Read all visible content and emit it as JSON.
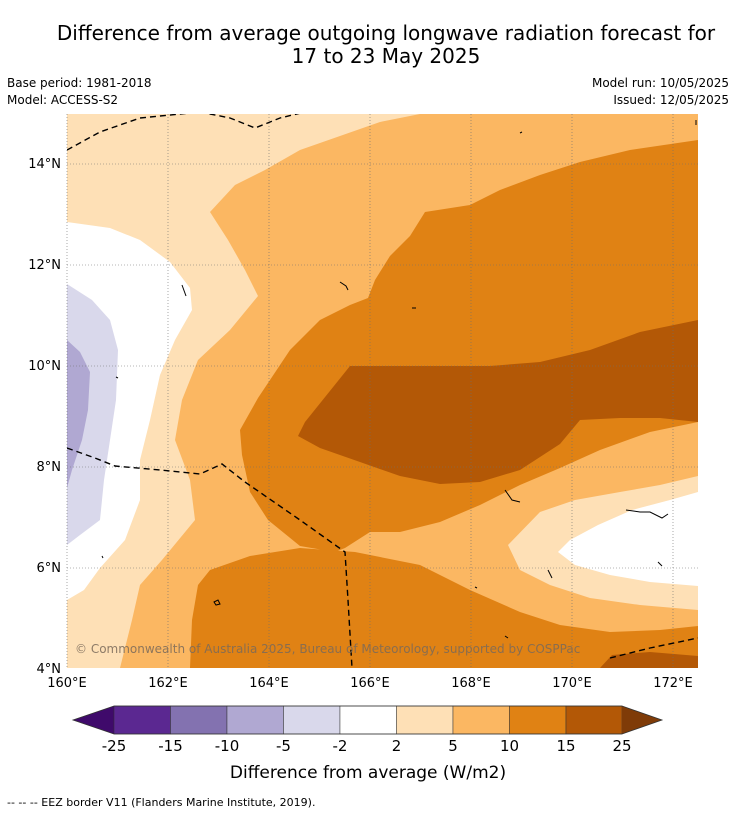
{
  "title_line1": "Difference from average outgoing longwave radiation forecast for",
  "title_line2": "17 to 23 May 2025",
  "meta_left": {
    "base_period": "Base period: 1981-2018",
    "model": "Model: ACCESS-S2"
  },
  "meta_right": {
    "model_run": "Model run: 10/05/2025",
    "issued": "Issued: 12/05/2025"
  },
  "map": {
    "lon_labels": [
      "160°E",
      "162°E",
      "164°E",
      "166°E",
      "168°E",
      "170°E",
      "172°E"
    ],
    "lat_labels": [
      "4°N",
      "6°N",
      "8°N",
      "10°N",
      "12°N",
      "14°N"
    ],
    "attribution": "© Commonwealth of Australia 2025, Bureau of Meteorology, supported by COSPPac"
  },
  "colorbar": {
    "ticks": [
      "-25",
      "-15",
      "-10",
      "-5",
      "-2",
      "2",
      "5",
      "10",
      "15",
      "25"
    ],
    "colors": [
      "#3f0a6b",
      "#5b2891",
      "#8372b0",
      "#b0a8d2",
      "#d9d8eb",
      "#ffffff",
      "#fee0b6",
      "#fbb762",
      "#e08214",
      "#b35806",
      "#7f3b08"
    ],
    "label": "Difference from average (W/m2)"
  },
  "footer": "-- -- -- EEZ border V11 (Flanders Marine Institute, 2019)."
}
